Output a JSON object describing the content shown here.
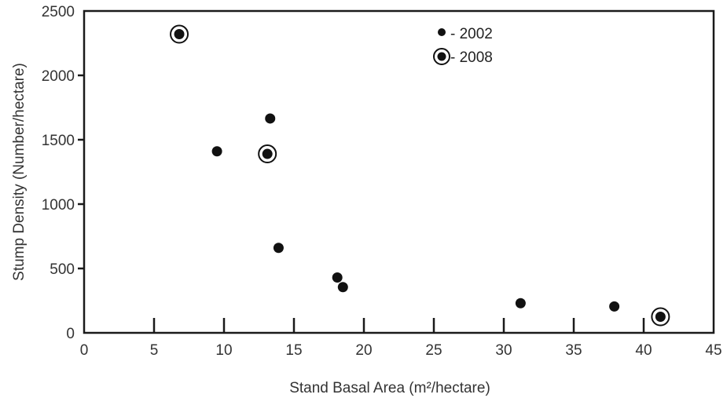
{
  "chart_data": {
    "type": "scatter",
    "xlabel": "Stand Basal Area (m²/hectare)",
    "ylabel": "Stump Density (Number/hectare)",
    "xlim": [
      0,
      45
    ],
    "ylim": [
      0,
      2500
    ],
    "xticks": [
      0,
      5,
      10,
      15,
      20,
      25,
      30,
      35,
      40,
      45
    ],
    "yticks": [
      0,
      500,
      1000,
      1500,
      2000,
      2500
    ],
    "grid": false,
    "legend_position": "top-right",
    "marker_color": "#111111",
    "series": [
      {
        "name": "2002",
        "legend_label": "- 2002",
        "marker": "filled-dot",
        "points": [
          {
            "x": 9.5,
            "y": 1410
          },
          {
            "x": 13.3,
            "y": 1665
          },
          {
            "x": 13.9,
            "y": 660
          },
          {
            "x": 18.1,
            "y": 430
          },
          {
            "x": 18.5,
            "y": 355
          },
          {
            "x": 31.2,
            "y": 230
          },
          {
            "x": 37.9,
            "y": 205
          }
        ]
      },
      {
        "name": "2008",
        "legend_label": "- 2008",
        "marker": "ringed-dot",
        "points": [
          {
            "x": 6.8,
            "y": 2320
          },
          {
            "x": 13.1,
            "y": 1390
          },
          {
            "x": 41.2,
            "y": 125
          }
        ]
      }
    ]
  }
}
